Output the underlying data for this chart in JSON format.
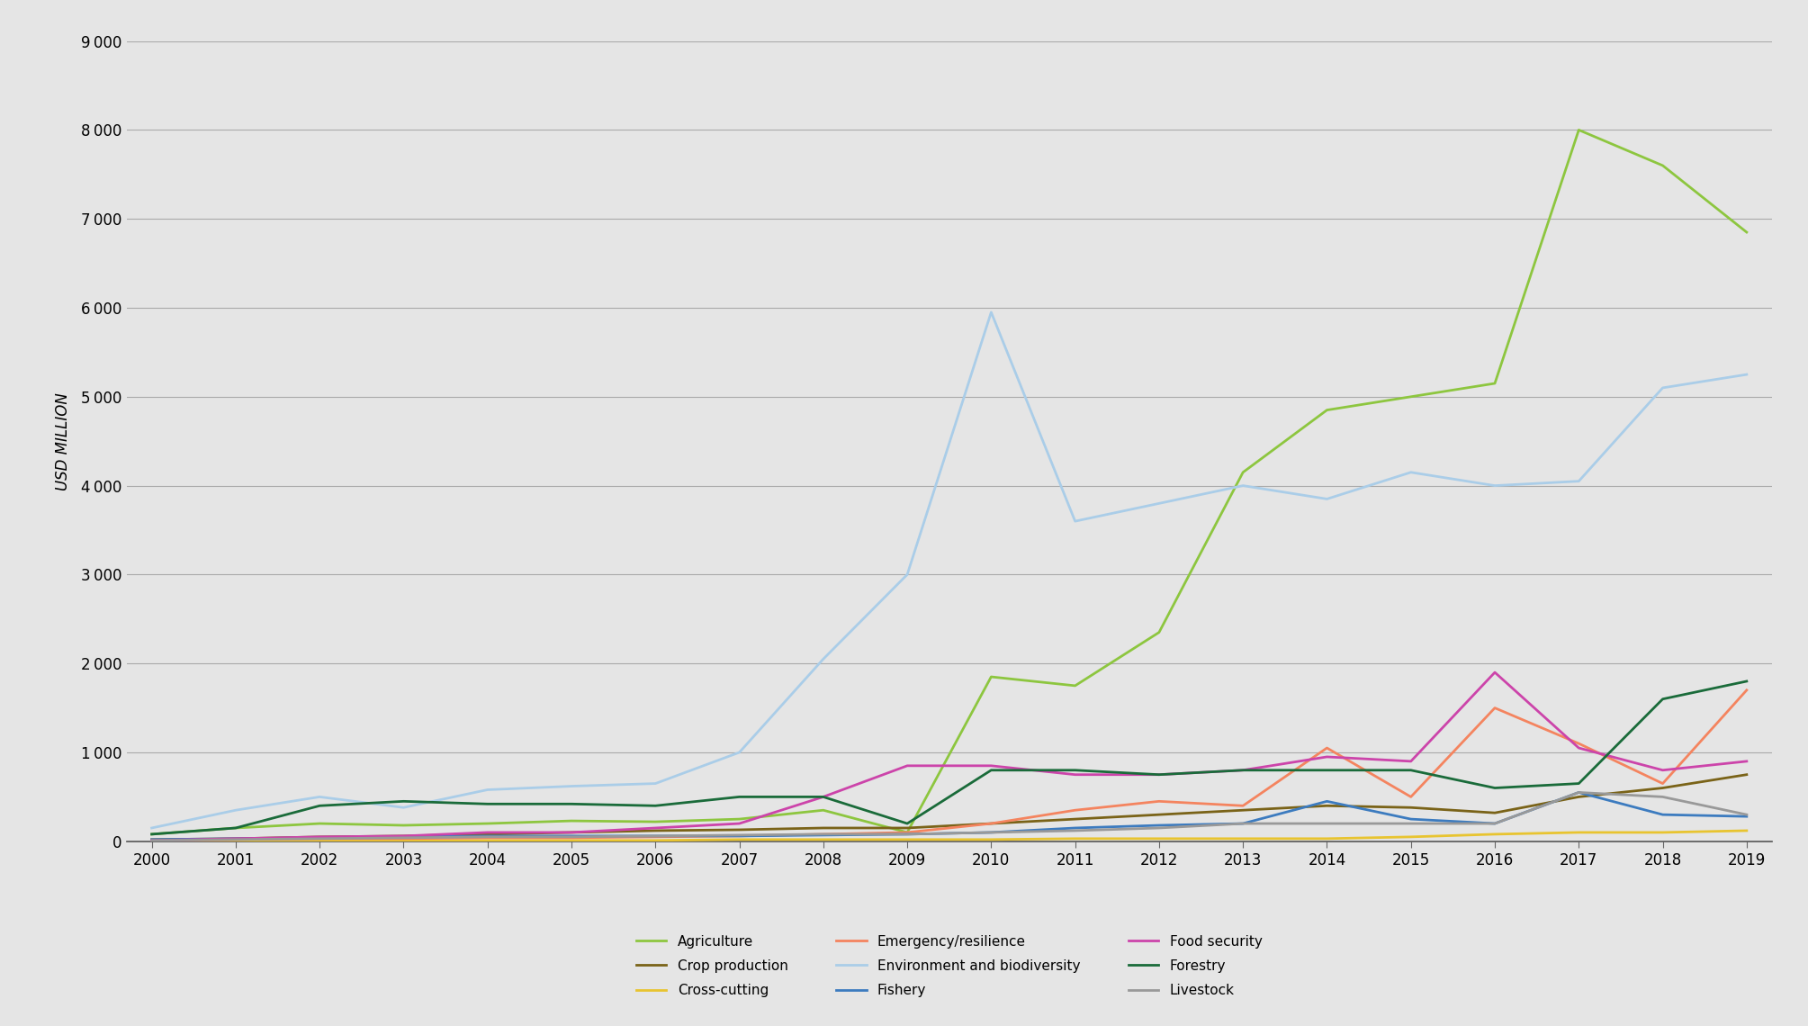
{
  "years": [
    2000,
    2001,
    2002,
    2003,
    2004,
    2005,
    2006,
    2007,
    2008,
    2009,
    2010,
    2011,
    2012,
    2013,
    2014,
    2015,
    2016,
    2017,
    2018,
    2019
  ],
  "series": {
    "Agriculture": {
      "color": "#8dc63f",
      "values": [
        80,
        150,
        200,
        180,
        200,
        230,
        220,
        250,
        350,
        100,
        1850,
        1750,
        2350,
        4150,
        4850,
        5000,
        5150,
        8000,
        7600,
        6850
      ]
    },
    "Crop production": {
      "color": "#7a6318",
      "values": [
        20,
        30,
        50,
        60,
        80,
        100,
        120,
        130,
        150,
        150,
        200,
        250,
        300,
        350,
        400,
        380,
        320,
        500,
        600,
        750
      ]
    },
    "Cross-cutting": {
      "color": "#e8c430",
      "values": [
        10,
        10,
        10,
        10,
        10,
        10,
        10,
        20,
        20,
        20,
        20,
        30,
        30,
        30,
        30,
        50,
        80,
        100,
        100,
        120
      ]
    },
    "Emergency/resilience": {
      "color": "#f4845f",
      "values": [
        10,
        20,
        30,
        30,
        40,
        40,
        50,
        60,
        80,
        100,
        200,
        350,
        450,
        400,
        1050,
        500,
        1500,
        1100,
        650,
        1700
      ]
    },
    "Environment and biodiversity": {
      "color": "#aacde8",
      "values": [
        150,
        350,
        500,
        380,
        580,
        620,
        650,
        1000,
        2050,
        3000,
        5950,
        3600,
        3800,
        4000,
        3850,
        4150,
        4000,
        4050,
        5100,
        5250
      ]
    },
    "Fishery": {
      "color": "#3c7bbf",
      "values": [
        20,
        30,
        40,
        50,
        60,
        60,
        60,
        60,
        70,
        80,
        100,
        150,
        180,
        200,
        450,
        250,
        200,
        550,
        300,
        280
      ]
    },
    "Food security": {
      "color": "#cc44aa",
      "values": [
        10,
        30,
        50,
        60,
        100,
        100,
        150,
        200,
        500,
        850,
        850,
        750,
        750,
        800,
        950,
        900,
        1900,
        1050,
        800,
        900
      ]
    },
    "Forestry": {
      "color": "#1a6b3a",
      "values": [
        80,
        150,
        400,
        450,
        420,
        420,
        400,
        500,
        500,
        200,
        800,
        800,
        750,
        800,
        800,
        800,
        600,
        650,
        1600,
        1800
      ]
    },
    "Livestock": {
      "color": "#999999",
      "values": [
        10,
        20,
        30,
        40,
        50,
        50,
        60,
        70,
        80,
        80,
        100,
        120,
        150,
        200,
        200,
        200,
        200,
        550,
        500,
        300
      ]
    }
  },
  "legend_order": [
    "Agriculture",
    "Crop production",
    "Cross-cutting",
    "Emergency/resilience",
    "Environment and biodiversity",
    "Fishery",
    "Food security",
    "Forestry",
    "Livestock"
  ],
  "ylabel": "USD MILLION",
  "ylim": [
    0,
    9000
  ],
  "yticks": [
    0,
    1000,
    2000,
    3000,
    4000,
    5000,
    6000,
    7000,
    8000,
    9000
  ],
  "background_color": "#e5e5e5",
  "grid_color": "#aaaaaa",
  "tick_fontsize": 12,
  "legend_fontsize": 11,
  "linewidth": 2.0
}
